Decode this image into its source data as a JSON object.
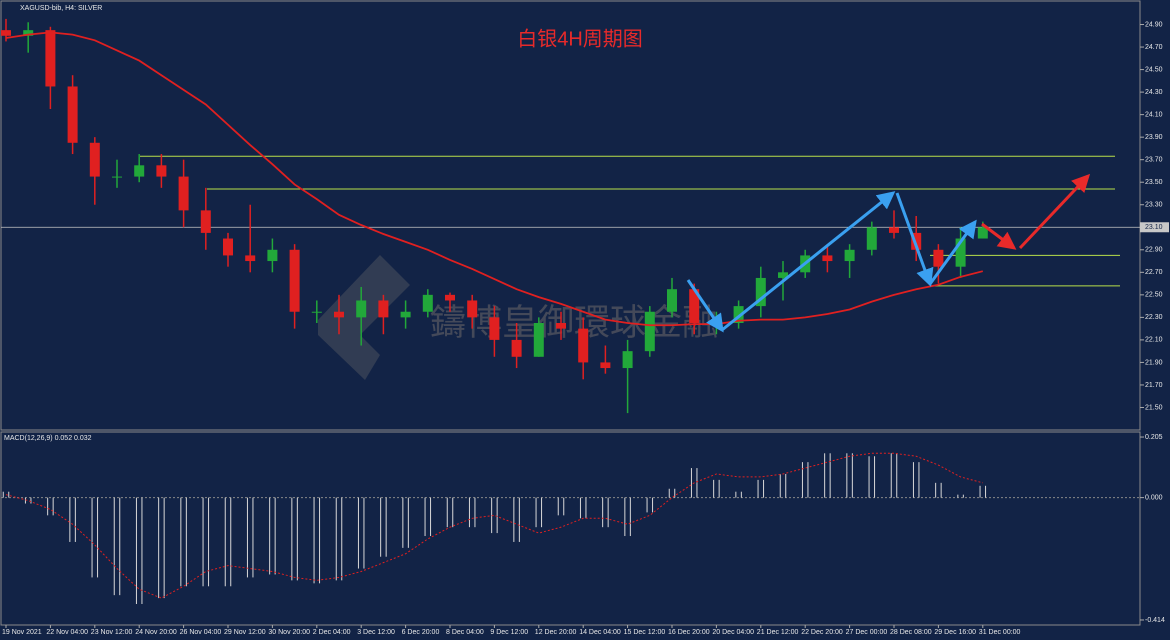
{
  "chart_data": [
    {
      "type": "candlestick",
      "header": "XAGUSD-bib, H4: SILVER",
      "title": "白银4H周期图",
      "watermark": "鑄博皇御環球金融",
      "categories": [
        "19 Nov 2021",
        null,
        "22 Nov 04:00",
        null,
        "23 Nov 12:00",
        null,
        "24 Nov 20:00",
        null,
        "26 Nov 04:00",
        null,
        "29 Nov 12:00",
        null,
        "30 Nov 20:00",
        null,
        "2 Dec 04:00",
        null,
        "3 Dec 12:00",
        null,
        "6 Dec 20:00",
        null,
        "8 Dec 04:00",
        null,
        "9 Dec 12:00",
        null,
        "12 Dec 20:00",
        null,
        "14 Dec 04:00",
        null,
        "15 Dec 12:00",
        null,
        "16 Dec 20:00",
        null,
        "20 Dec 04:00",
        null,
        "21 Dec 12:00",
        null,
        "22 Dec 20:00",
        null,
        "27 Dec 00:00",
        null,
        "28 Dec 08:00",
        null,
        "29 Dec 16:00",
        null,
        "31 Dec 00:00"
      ],
      "open": [
        24.85,
        24.8,
        24.85,
        24.35,
        23.85,
        23.55,
        23.55,
        23.65,
        23.55,
        23.25,
        23.0,
        22.85,
        22.8,
        22.9,
        22.35,
        22.35,
        22.3,
        22.45,
        22.3,
        22.35,
        22.5,
        22.45,
        22.3,
        22.1,
        21.95,
        22.25,
        22.2,
        21.9,
        21.85,
        22.0,
        22.35,
        22.55,
        22.25,
        22.25,
        22.4,
        22.65,
        22.7,
        22.85,
        22.8,
        22.9,
        23.1,
        23.05,
        22.9,
        22.75,
        23.0
      ],
      "high": [
        24.95,
        24.92,
        24.88,
        24.45,
        23.9,
        23.7,
        23.75,
        23.75,
        23.7,
        23.45,
        23.05,
        23.3,
        23.0,
        22.95,
        22.45,
        22.5,
        22.57,
        22.5,
        22.45,
        22.55,
        22.52,
        22.5,
        22.4,
        22.25,
        22.3,
        22.35,
        22.3,
        22.05,
        22.1,
        22.4,
        22.65,
        22.6,
        22.35,
        22.45,
        22.75,
        22.8,
        22.9,
        22.95,
        22.95,
        23.15,
        23.25,
        23.2,
        22.95,
        23.1,
        23.15
      ],
      "low": [
        24.75,
        24.65,
        24.15,
        23.75,
        23.3,
        23.45,
        23.5,
        23.45,
        23.1,
        22.9,
        22.75,
        22.7,
        22.7,
        22.2,
        22.25,
        22.15,
        22.05,
        22.15,
        22.2,
        22.3,
        22.35,
        22.2,
        21.95,
        21.85,
        21.95,
        22.1,
        21.75,
        21.8,
        21.45,
        21.95,
        22.3,
        22.15,
        22.15,
        22.2,
        22.3,
        22.45,
        22.65,
        22.7,
        22.65,
        22.85,
        23.0,
        22.8,
        22.6,
        22.65,
        23.0
      ],
      "close": [
        24.8,
        24.85,
        24.35,
        23.85,
        23.55,
        23.55,
        23.65,
        23.55,
        23.25,
        23.05,
        22.85,
        22.8,
        22.9,
        22.35,
        22.35,
        22.3,
        22.45,
        22.3,
        22.35,
        22.5,
        22.45,
        22.3,
        22.1,
        21.95,
        22.25,
        22.2,
        21.9,
        21.85,
        22.0,
        22.35,
        22.55,
        22.25,
        22.25,
        22.4,
        22.65,
        22.7,
        22.85,
        22.8,
        22.9,
        23.1,
        23.05,
        22.9,
        22.75,
        23.0,
        23.1
      ],
      "ma": [
        24.78,
        24.81,
        24.83,
        24.81,
        24.76,
        24.67,
        24.58,
        24.45,
        24.32,
        24.19,
        24.01,
        23.83,
        23.66,
        23.48,
        23.35,
        23.21,
        23.12,
        23.04,
        22.97,
        22.9,
        22.81,
        22.73,
        22.64,
        22.55,
        22.48,
        22.42,
        22.35,
        22.28,
        22.25,
        22.23,
        22.23,
        22.24,
        22.24,
        22.27,
        22.28,
        22.28,
        22.3,
        22.33,
        22.37,
        22.44,
        22.5,
        22.55,
        22.59,
        22.66,
        22.71
      ],
      "up_color": "#22a83a",
      "down_color": "#e02020",
      "ma_color": "#e02020",
      "levels": [
        23.73,
        23.44,
        22.85,
        22.58
      ],
      "level_color": "#b8e04a",
      "price_line": {
        "value": 23.1,
        "label": "23.10"
      },
      "ylim": [
        21.3,
        25.1
      ],
      "yticks": [
        {
          "value": 21.5,
          "label": "21.50"
        },
        {
          "value": 21.7,
          "label": "21.70"
        },
        {
          "value": 21.9,
          "label": "21.90"
        },
        {
          "value": 22.1,
          "label": "22.10"
        },
        {
          "value": 22.3,
          "label": "22.30"
        },
        {
          "value": 22.5,
          "label": "22.50"
        },
        {
          "value": 22.7,
          "label": "22.70"
        },
        {
          "value": 22.9,
          "label": "22.90"
        },
        {
          "value": 23.1,
          "label": "23.10"
        },
        {
          "value": 23.3,
          "label": "23.30"
        },
        {
          "value": 23.5,
          "label": "23.50"
        },
        {
          "value": 23.7,
          "label": "23.70"
        },
        {
          "value": 23.9,
          "label": "23.90"
        },
        {
          "value": 24.1,
          "label": "24.10"
        },
        {
          "value": 24.3,
          "label": "24.30"
        },
        {
          "value": 24.5,
          "label": "24.50"
        },
        {
          "value": 24.7,
          "label": "24.70"
        },
        {
          "value": 24.9,
          "label": "24.90"
        }
      ]
    },
    {
      "type": "bar",
      "label": "MACD(12,26,9) 0.052 0.032",
      "values": [
        0.02,
        -0.02,
        -0.06,
        -0.15,
        -0.27,
        -0.33,
        -0.36,
        -0.34,
        -0.3,
        -0.3,
        -0.3,
        -0.27,
        -0.26,
        -0.28,
        -0.29,
        -0.28,
        -0.24,
        -0.2,
        -0.17,
        -0.13,
        -0.1,
        -0.1,
        -0.12,
        -0.15,
        -0.1,
        -0.06,
        -0.07,
        -0.1,
        -0.13,
        -0.05,
        0.03,
        0.1,
        0.06,
        0.02,
        0.06,
        0.08,
        0.12,
        0.15,
        0.15,
        0.14,
        0.15,
        0.12,
        0.05,
        0.01,
        0.04
      ],
      "signal": [
        0.01,
        -0.01,
        -0.04,
        -0.09,
        -0.16,
        -0.24,
        -0.31,
        -0.34,
        -0.3,
        -0.25,
        -0.23,
        -0.24,
        -0.25,
        -0.27,
        -0.28,
        -0.27,
        -0.25,
        -0.22,
        -0.19,
        -0.14,
        -0.1,
        -0.07,
        -0.06,
        -0.09,
        -0.12,
        -0.1,
        -0.07,
        -0.07,
        -0.09,
        -0.06,
        0.0,
        0.05,
        0.08,
        0.07,
        0.07,
        0.08,
        0.1,
        0.12,
        0.14,
        0.15,
        0.15,
        0.14,
        0.11,
        0.07,
        0.05
      ],
      "color": "#d8d8d8",
      "signal_color": "#e02020",
      "ylim": [
        -0.431,
        0.222
      ],
      "yticks": [
        0.205,
        {
          "value": 0,
          "label": "0.000"
        },
        -0.414
      ]
    }
  ]
}
